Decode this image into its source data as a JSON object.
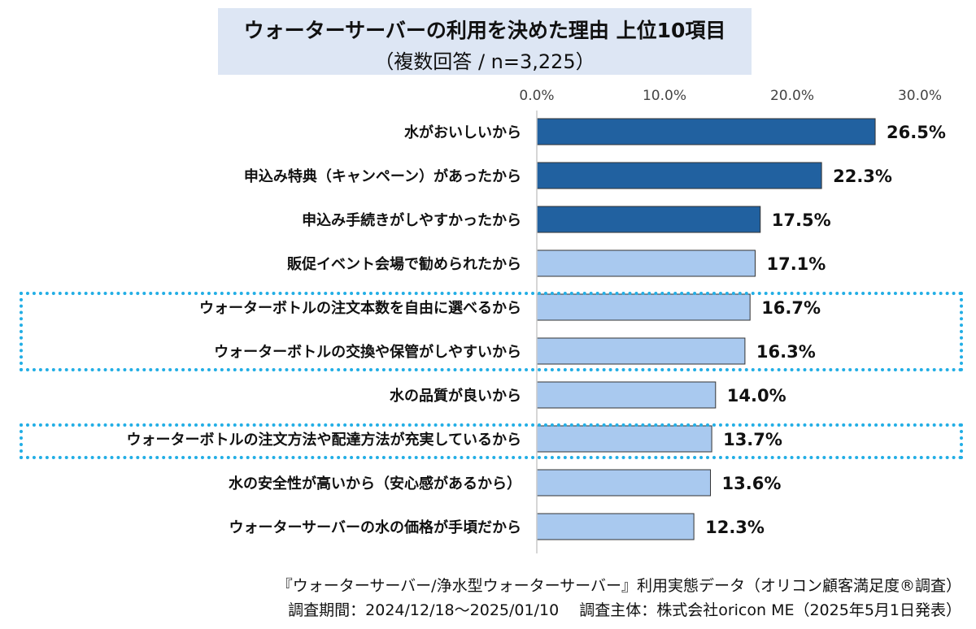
{
  "chart_data": {
    "type": "bar",
    "orientation": "horizontal",
    "title": "ウォーターサーバーの利用を決めた理由 上位10項目",
    "subtitle": "（複数回答 / n=3,225）",
    "categories": [
      "水がおいしいから",
      "申込み特典（キャンペーン）があったから",
      "申込み手続きがしやすかったから",
      "販促イベント会場で勧められたから",
      "ウォーターボトルの注文本数を自由に選べるから",
      "ウォーターボトルの交換や保管がしやすいから",
      "水の品質が良いから",
      "ウォーターボトルの注文方法や配達方法が充実しているから",
      "水の安全性が高いから（安心感があるから）",
      "ウォーターサーバーの水の価格が手頃だから"
    ],
    "values": [
      26.5,
      22.3,
      17.5,
      17.1,
      16.7,
      16.3,
      14.0,
      13.7,
      13.6,
      12.3
    ],
    "value_labels": [
      "26.5%",
      "22.3%",
      "17.5%",
      "17.1%",
      "16.7%",
      "16.3%",
      "14.0%",
      "13.7%",
      "13.6%",
      "12.3%"
    ],
    "emphasized_top": 3,
    "highlighted_groups": [
      [
        4,
        5
      ],
      [
        7
      ]
    ],
    "xlim": [
      0,
      30
    ],
    "ticks": [
      0,
      10,
      20,
      30
    ],
    "tick_labels": [
      "0.0%",
      "10.0%",
      "20.0%",
      "30.0%"
    ],
    "xlabel": "",
    "ylabel": "",
    "grid": false
  },
  "colors": {
    "bar_top": "#2161a0",
    "bar_rest": "#a9c9ef",
    "bar_edge": "#333333",
    "highlight_border": "#22aee5",
    "title_bg": "#dde6f4"
  },
  "footer": {
    "line1": "『ウォーターサーバー/浄水型ウォーターサーバー』利用実態データ（オリコン顧客満足度®調査）",
    "line2": "調査期間：2024/12/18～2025/01/10　 調査主体：株式会社oricon ME（2025年5月1日発表）"
  }
}
